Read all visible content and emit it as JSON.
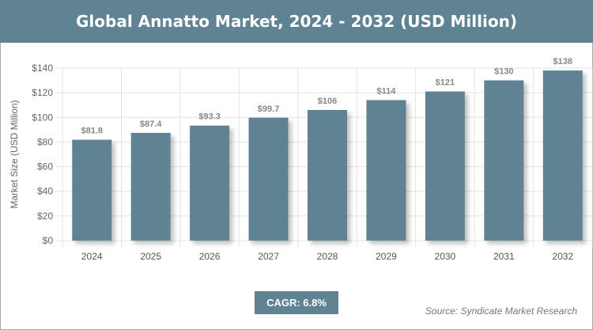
{
  "header": {
    "title": "Global Annatto Market, 2024 - 2032 (USD Million)"
  },
  "footer": {
    "cagr": "CAGR: 6.8%",
    "source": "Source: Syndicate Market Research"
  },
  "colors": {
    "bar": "#5f8393",
    "header": "#5f8393"
  },
  "chart_data": {
    "type": "bar",
    "title": "Global Annatto Market, 2024 - 2032 (USD Million)",
    "xlabel": "",
    "ylabel": "Market Size (USD Million)",
    "categories": [
      "2024",
      "2025",
      "2026",
      "2027",
      "2028",
      "2029",
      "2030",
      "2031",
      "2032"
    ],
    "values": [
      81.8,
      87.4,
      93.3,
      99.7,
      106,
      114,
      121,
      130,
      138
    ],
    "data_labels": [
      "$81.8",
      "$87.4",
      "$93.3",
      "$99.7",
      "$106",
      "$114",
      "$121",
      "$130",
      "$138"
    ],
    "yticks": [
      "$0",
      "$20",
      "$40",
      "$60",
      "$80",
      "$100",
      "$120",
      "$140"
    ],
    "ylim": [
      0,
      140
    ],
    "grid": true
  }
}
